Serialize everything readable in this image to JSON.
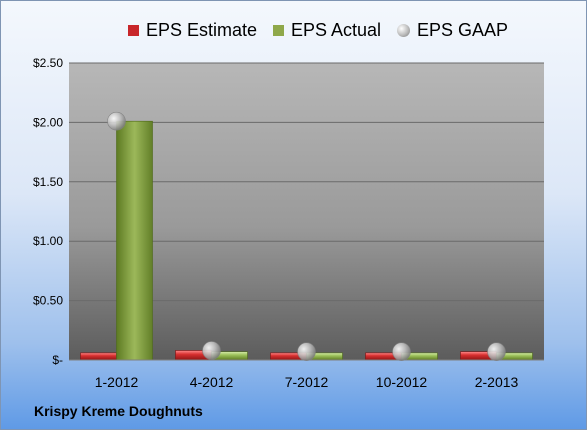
{
  "chart_data": {
    "type": "bar",
    "categories": [
      "1-2012",
      "4-2012",
      "7-2012",
      "10-2012",
      "2-2013"
    ],
    "series": [
      {
        "name": "EPS Estimate",
        "kind": "bar",
        "color": "#c8262a",
        "values": [
          0.06,
          0.08,
          0.06,
          0.06,
          0.07
        ]
      },
      {
        "name": "EPS Actual",
        "kind": "bar",
        "color": "#8fa84a",
        "values": [
          2.01,
          0.07,
          0.06,
          0.06,
          0.06
        ]
      },
      {
        "name": "EPS GAAP",
        "kind": "marker",
        "color": "#b8b8b8",
        "values": [
          2.01,
          0.08,
          0.07,
          0.07,
          0.07
        ]
      }
    ],
    "yticks": [
      "$-",
      "$0.50",
      "$1.00",
      "$1.50",
      "$2.00",
      "$2.50"
    ],
    "ylim": [
      0,
      2.5
    ],
    "grid": true,
    "legend": "top"
  },
  "caption": "Krispy Kreme Doughnuts"
}
